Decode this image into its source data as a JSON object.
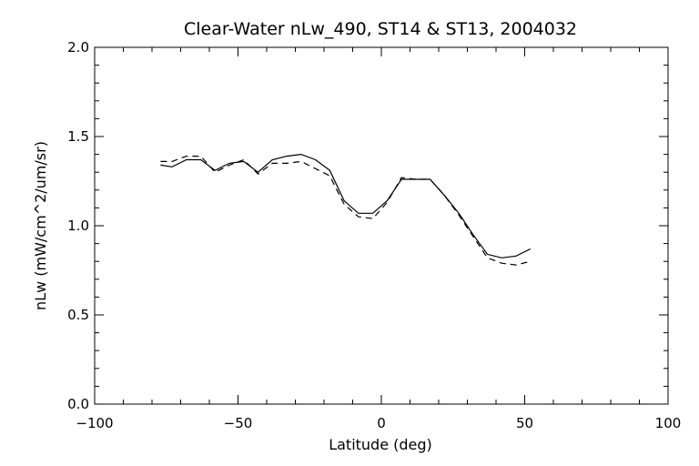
{
  "chart_data": {
    "type": "line",
    "title": "Clear-Water nLw_490, ST14 & ST13, 2004032",
    "xlabel": "Latitude (deg)",
    "ylabel": "nLw (mW/cm^2/um/sr)",
    "xlim": [
      -100,
      100
    ],
    "ylim": [
      0.0,
      2.0
    ],
    "xticks": [
      -100,
      -50,
      0,
      50,
      100
    ],
    "xtick_labels": [
      "−100",
      "−50",
      "0",
      "50",
      "100"
    ],
    "yticks": [
      0.0,
      0.5,
      1.0,
      1.5,
      2.0
    ],
    "ytick_labels": [
      "0.0",
      "0.5",
      "1.0",
      "1.5",
      "2.0"
    ],
    "x_minor_step": 10,
    "y_minor_step": 0.1,
    "grid": false,
    "series": [
      {
        "style": "solid",
        "x": [
          -77,
          -73,
          -68,
          -63,
          -58,
          -53,
          -48,
          -43,
          -38,
          -33,
          -28,
          -23,
          -18,
          -13,
          -8,
          -3,
          2,
          7,
          12,
          17,
          22,
          27,
          32,
          37,
          42,
          47,
          52
        ],
        "y": [
          1.34,
          1.33,
          1.37,
          1.37,
          1.31,
          1.35,
          1.36,
          1.3,
          1.37,
          1.39,
          1.4,
          1.37,
          1.31,
          1.14,
          1.07,
          1.07,
          1.14,
          1.26,
          1.26,
          1.26,
          1.17,
          1.07,
          0.95,
          0.84,
          0.82,
          0.83,
          0.87
        ]
      },
      {
        "style": "dashed",
        "x": [
          -77,
          -73,
          -68,
          -63,
          -58,
          -53,
          -48,
          -43,
          -38,
          -33,
          -28,
          -23,
          -18,
          -13,
          -8,
          -3,
          2,
          7,
          12,
          17,
          22,
          27,
          32,
          37,
          42,
          47,
          52
        ],
        "y": [
          1.36,
          1.36,
          1.39,
          1.39,
          1.3,
          1.34,
          1.37,
          1.29,
          1.35,
          1.35,
          1.36,
          1.32,
          1.28,
          1.12,
          1.05,
          1.04,
          1.13,
          1.27,
          1.26,
          1.26,
          1.17,
          1.06,
          0.94,
          0.82,
          0.79,
          0.78,
          0.8
        ]
      }
    ]
  }
}
